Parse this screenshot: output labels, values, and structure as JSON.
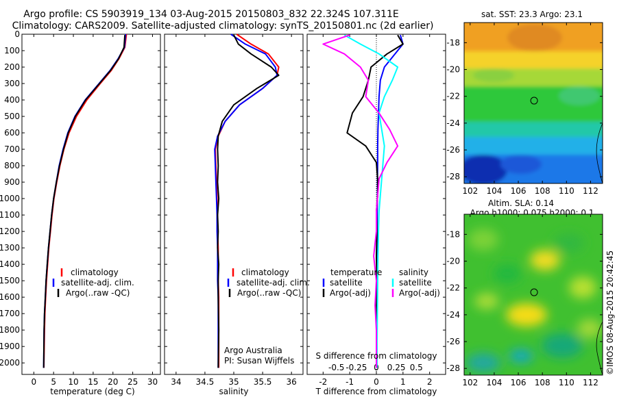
{
  "title_line1": "Argo profile: CS 5903919_134 03-Aug-2015 20150803_832 22.324S 107.311E",
  "title_line2": "Climatology: CARS2009. Satellite-adjusted climatology: synTS_20150801.nc (2d earlier)",
  "side_stamp": "©IMOS 08-Aug-2015 20:42:45",
  "colors": {
    "red": "#ff0000",
    "blue": "#0000ff",
    "black": "#000000",
    "cyan": "#00ffff",
    "magenta": "#ff00ff"
  },
  "chart_data": [
    {
      "type": "line",
      "xlabel": "temperature (deg C)",
      "ylabel": "",
      "xlim": [
        -3,
        32
      ],
      "ylim": [
        2070,
        0
      ],
      "xticks": [
        0,
        5,
        10,
        15,
        20,
        25,
        30
      ],
      "yticks": [
        0,
        100,
        200,
        300,
        400,
        500,
        600,
        700,
        800,
        900,
        1000,
        1100,
        1200,
        1300,
        1400,
        1500,
        1600,
        1700,
        1800,
        1900,
        2000
      ],
      "legend": [
        "climatology",
        "satellite-adj. clim.",
        "Argo(..raw -QC)"
      ],
      "legend_colors": [
        "#ff0000",
        "#0000ff",
        "#000000"
      ],
      "series": [
        {
          "name": "climatology",
          "color": "#ff0000",
          "x": [
            23.4,
            23.0,
            21.5,
            19.6,
            16.8,
            13.4,
            10.8,
            8.9,
            7.6,
            6.6,
            5.8,
            5.1,
            4.6,
            4.2,
            3.8,
            3.5,
            3.2,
            3.0,
            2.8,
            2.7,
            2.55
          ],
          "y": [
            0,
            80,
            150,
            220,
            300,
            400,
            500,
            600,
            700,
            800,
            900,
            1000,
            1100,
            1200,
            1300,
            1400,
            1500,
            1600,
            1700,
            1800,
            2030
          ]
        },
        {
          "name": "satellite-adj. clim.",
          "color": "#0000ff",
          "x": [
            23.2,
            22.9,
            21.3,
            19.3,
            16.5,
            13.0,
            10.4,
            8.6,
            7.4,
            6.4,
            5.7,
            5.0,
            4.5,
            4.1,
            3.7,
            3.4,
            3.1,
            2.9,
            2.7,
            2.6,
            2.5
          ],
          "y": [
            0,
            80,
            150,
            220,
            300,
            400,
            500,
            600,
            700,
            800,
            900,
            1000,
            1100,
            1200,
            1300,
            1400,
            1500,
            1600,
            1700,
            1800,
            2030
          ]
        },
        {
          "name": "Argo(..raw -QC)",
          "color": "#000000",
          "x": [
            23.0,
            22.8,
            21.4,
            19.4,
            16.6,
            13.1,
            10.5,
            8.7,
            7.5,
            6.5,
            5.7,
            5.0,
            4.5,
            4.1,
            3.7,
            3.4,
            3.1,
            2.9,
            2.7,
            2.6,
            2.5
          ],
          "y": [
            5,
            80,
            150,
            220,
            300,
            400,
            500,
            600,
            700,
            800,
            900,
            1000,
            1100,
            1200,
            1300,
            1400,
            1500,
            1600,
            1700,
            1800,
            2030
          ]
        }
      ]
    },
    {
      "type": "line",
      "xlabel": "salinity",
      "ylabel": "",
      "xlim": [
        33.8,
        36.2
      ],
      "ylim": [
        2070,
        0
      ],
      "xticks": [
        34,
        34.5,
        35,
        35.5,
        36
      ],
      "legend": [
        "climatology",
        "satellite-adj. clim.",
        "Argo(..raw -QC)"
      ],
      "legend_colors": [
        "#ff0000",
        "#0000ff",
        "#000000"
      ],
      "notes": [
        "Argo Australia",
        "PI: Susan Wijffels"
      ],
      "series": [
        {
          "name": "climatology",
          "color": "#ff0000",
          "x": [
            35.05,
            35.3,
            35.6,
            35.78,
            35.75,
            35.5,
            35.1,
            34.85,
            34.73,
            34.68,
            34.69,
            34.7,
            34.71,
            34.72,
            34.72,
            34.73,
            34.73,
            34.73,
            34.74,
            34.74,
            34.74
          ],
          "y": [
            0,
            60,
            120,
            200,
            250,
            330,
            430,
            530,
            620,
            700,
            800,
            900,
            1000,
            1100,
            1200,
            1300,
            1400,
            1500,
            1600,
            1800,
            2030
          ]
        },
        {
          "name": "satellite-adj. clim.",
          "color": "#0000ff",
          "x": [
            34.95,
            35.2,
            35.55,
            35.72,
            35.75,
            35.5,
            35.1,
            34.85,
            34.72,
            34.67,
            34.68,
            34.69,
            34.7,
            34.71,
            34.71,
            34.72,
            34.72,
            34.72,
            34.73,
            34.73,
            34.73
          ],
          "y": [
            0,
            60,
            120,
            200,
            250,
            330,
            430,
            530,
            620,
            700,
            800,
            900,
            1000,
            1100,
            1200,
            1300,
            1400,
            1500,
            1600,
            1800,
            2030
          ]
        },
        {
          "name": "Argo(..raw -QC)",
          "color": "#000000",
          "x": [
            35.0,
            35.08,
            35.3,
            35.65,
            35.78,
            35.4,
            35.0,
            34.8,
            34.73,
            34.72,
            34.73,
            34.72,
            34.74,
            34.72,
            34.73,
            34.72,
            34.74,
            34.73,
            34.73,
            34.74,
            34.73
          ],
          "y": [
            5,
            60,
            120,
            200,
            250,
            330,
            430,
            530,
            620,
            700,
            800,
            900,
            1000,
            1100,
            1200,
            1300,
            1400,
            1500,
            1600,
            1800,
            2030
          ]
        }
      ]
    },
    {
      "type": "line",
      "xlabel": "T difference from climatology",
      "xlabel_top": "S difference from climatology",
      "xlim": [
        -2.6,
        2.6
      ],
      "ylim": [
        2070,
        0
      ],
      "xticks": [
        -2,
        -1,
        0,
        1,
        2
      ],
      "xticks_s": [
        "-0.5",
        "-0.25",
        "0",
        "0.25",
        "0.5"
      ],
      "legend_headers": [
        "temperature",
        "salinity"
      ],
      "legend": [
        "satellite",
        "Argo(-adj)",
        "satellite",
        "Argo(-adj)"
      ],
      "legend_colors": [
        "#0000ff",
        "#000000",
        "#00ffff",
        "#ff00ff"
      ],
      "series": [
        {
          "name": "temperature satellite",
          "color": "#0000ff",
          "x": [
            0.9,
            1.0,
            0.7,
            0.3,
            0.15,
            0.1,
            0.08,
            0.06,
            0.05,
            0.05,
            0.04,
            0.04,
            0.03,
            0.03,
            0.03,
            0.02,
            0.02,
            0.02,
            0.02,
            0.02
          ],
          "y": [
            5,
            60,
            120,
            200,
            280,
            380,
            480,
            580,
            680,
            780,
            880,
            980,
            1080,
            1200,
            1350,
            1500,
            1650,
            1800,
            1950,
            2030
          ]
        },
        {
          "name": "temperature Argo(-adj)",
          "color": "#000000",
          "x": [
            0.8,
            1.0,
            0.4,
            -0.2,
            -0.3,
            -0.5,
            -0.9,
            -1.1,
            -0.4,
            0.0,
            0.05,
            0.05,
            0.0,
            0.02,
            0.0,
            0.02,
            0.0,
            0.01,
            0.0,
            0.0
          ],
          "y": [
            5,
            60,
            120,
            200,
            280,
            380,
            480,
            600,
            680,
            780,
            880,
            980,
            1080,
            1200,
            1350,
            1500,
            1650,
            1800,
            1950,
            2030
          ]
        },
        {
          "name": "salinity satellite",
          "color": "#00ffff",
          "x": [
            -1.2,
            -0.6,
            0.1,
            0.8,
            0.6,
            0.3,
            0.1,
            0.2,
            0.3,
            0.25,
            0.2,
            0.15,
            0.1,
            0.08,
            0.06,
            0.05,
            0.04,
            0.03,
            0.02,
            0.02
          ],
          "y": [
            5,
            60,
            120,
            200,
            280,
            380,
            480,
            580,
            680,
            780,
            880,
            980,
            1080,
            1200,
            1350,
            1500,
            1650,
            1800,
            1950,
            2030
          ]
        },
        {
          "name": "salinity Argo(-adj)",
          "color": "#ff00ff",
          "x": [
            -1.0,
            -2.0,
            -1.2,
            -0.6,
            -0.3,
            -0.4,
            0.1,
            0.5,
            0.8,
            0.4,
            0.1,
            0.05,
            0.0,
            0.0,
            -0.1,
            0.0,
            -0.05,
            0.0,
            0.0,
            0.0
          ],
          "y": [
            5,
            60,
            120,
            200,
            280,
            380,
            480,
            580,
            680,
            780,
            880,
            980,
            1080,
            1200,
            1350,
            1500,
            1650,
            1800,
            1950,
            2030
          ]
        }
      ]
    },
    {
      "type": "heatmap",
      "title": "sat. SST: 23.3 Argo: 23.1",
      "xlim": [
        101.5,
        113
      ],
      "ylim": [
        -28.5,
        -16.5
      ],
      "xticks": [
        102,
        104,
        106,
        108,
        110,
        112
      ],
      "yticks": [
        -18,
        -20,
        -22,
        -24,
        -26,
        -28
      ],
      "marker": {
        "lon": 107.311,
        "lat": -22.324
      }
    },
    {
      "type": "heatmap",
      "title": "Altim. SLA: 0.14",
      "subtitle": "Argo h1000: 0.075 h2000: 0.1",
      "xlim": [
        101.5,
        113
      ],
      "ylim": [
        -28.5,
        -16.5
      ],
      "xticks": [
        102,
        104,
        106,
        108,
        110,
        112
      ],
      "yticks": [
        -18,
        -20,
        -22,
        -24,
        -26,
        -28
      ],
      "marker": {
        "lon": 107.311,
        "lat": -22.324
      }
    }
  ]
}
